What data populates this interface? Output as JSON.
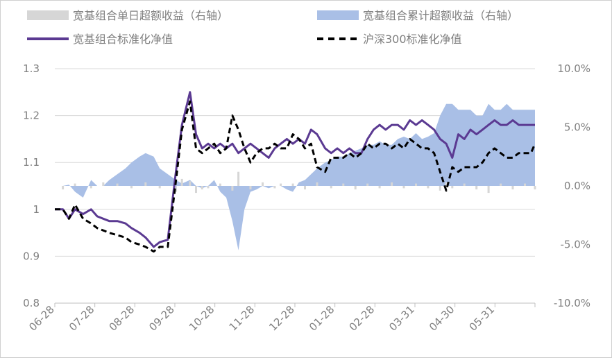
{
  "chart_data": {
    "type": "line",
    "legend": [
      {
        "label": "宽基组合单日超额收益（右轴）",
        "kind": "bar",
        "color": "#d6d6d6"
      },
      {
        "label": "宽基组合累计超额收益（右轴）",
        "kind": "area",
        "color": "#a9bfe6"
      },
      {
        "label": "宽基组合标准化净值",
        "kind": "line",
        "color": "#5b3a92"
      },
      {
        "label": "沪深300标准化净值",
        "kind": "dashed",
        "color": "#000000"
      }
    ],
    "legend_placement": "top",
    "x_ticks": [
      "06-28",
      "07-28",
      "08-28",
      "09-28",
      "10-28",
      "11-28",
      "12-28",
      "01-28",
      "02-28",
      "03-31",
      "04-30",
      "05-31"
    ],
    "x_range": [
      0,
      238
    ],
    "y_left": {
      "ticks": [
        "1.3",
        "1.2",
        "1.1",
        "1",
        "0.9",
        "0.8"
      ],
      "range": [
        0.8,
        1.3
      ]
    },
    "y_right": {
      "ticks": [
        "10.0%",
        "5.0%",
        "0.0%",
        "-5.0%",
        "-10.0%"
      ],
      "range": [
        -10,
        10
      ]
    },
    "grid": true,
    "series": [
      {
        "name": "宽基组合标准化净值",
        "style": "solid",
        "color": "#5b3a92",
        "x": [
          0,
          4,
          7,
          10,
          14,
          18,
          21,
          24,
          27,
          31,
          35,
          38,
          42,
          45,
          49,
          52,
          56,
          60,
          63,
          67,
          70,
          73,
          76,
          79,
          82,
          85,
          88,
          91,
          94,
          97,
          100,
          103,
          106,
          109,
          112,
          115,
          118,
          121,
          124,
          127,
          130,
          134,
          137,
          140,
          143,
          146,
          149,
          152,
          155,
          158,
          161,
          164,
          167,
          170,
          173,
          176,
          179,
          182,
          185,
          188,
          191,
          194,
          197,
          200,
          203,
          206,
          209,
          212,
          215,
          218,
          221,
          224,
          227,
          230,
          233,
          236,
          238
        ],
        "values": [
          1.0,
          1.0,
          0.98,
          1.0,
          0.99,
          1.0,
          0.985,
          0.98,
          0.975,
          0.975,
          0.97,
          0.96,
          0.95,
          0.94,
          0.92,
          0.93,
          0.935,
          1.08,
          1.18,
          1.25,
          1.16,
          1.13,
          1.14,
          1.13,
          1.14,
          1.13,
          1.14,
          1.12,
          1.13,
          1.14,
          1.13,
          1.12,
          1.11,
          1.13,
          1.14,
          1.15,
          1.14,
          1.15,
          1.14,
          1.17,
          1.16,
          1.13,
          1.12,
          1.13,
          1.12,
          1.13,
          1.12,
          1.12,
          1.15,
          1.17,
          1.18,
          1.17,
          1.18,
          1.18,
          1.17,
          1.19,
          1.18,
          1.19,
          1.18,
          1.17,
          1.15,
          1.14,
          1.11,
          1.16,
          1.15,
          1.17,
          1.16,
          1.17,
          1.18,
          1.19,
          1.18,
          1.18,
          1.19,
          1.18,
          1.18,
          1.18,
          1.18
        ]
      },
      {
        "name": "沪深300标准化净值",
        "style": "dashed",
        "color": "#000000",
        "x": [
          0,
          4,
          7,
          10,
          14,
          18,
          21,
          24,
          27,
          31,
          35,
          38,
          42,
          45,
          49,
          52,
          56,
          60,
          63,
          67,
          70,
          73,
          76,
          79,
          82,
          85,
          88,
          91,
          94,
          97,
          100,
          103,
          106,
          109,
          112,
          115,
          118,
          121,
          124,
          127,
          130,
          134,
          137,
          140,
          143,
          146,
          149,
          152,
          155,
          158,
          161,
          164,
          167,
          170,
          173,
          176,
          179,
          182,
          185,
          188,
          191,
          194,
          197,
          200,
          203,
          206,
          209,
          212,
          215,
          218,
          221,
          224,
          227,
          230,
          233,
          236,
          238
        ],
        "values": [
          1.0,
          1.0,
          0.98,
          1.01,
          0.98,
          0.97,
          0.96,
          0.955,
          0.95,
          0.945,
          0.94,
          0.93,
          0.925,
          0.92,
          0.91,
          0.92,
          0.92,
          1.06,
          1.17,
          1.23,
          1.13,
          1.12,
          1.13,
          1.14,
          1.12,
          1.13,
          1.2,
          1.17,
          1.13,
          1.1,
          1.12,
          1.13,
          1.13,
          1.14,
          1.13,
          1.13,
          1.16,
          1.15,
          1.13,
          1.14,
          1.09,
          1.08,
          1.11,
          1.11,
          1.11,
          1.12,
          1.11,
          1.12,
          1.14,
          1.13,
          1.14,
          1.14,
          1.13,
          1.14,
          1.13,
          1.15,
          1.14,
          1.13,
          1.13,
          1.12,
          1.08,
          1.04,
          1.09,
          1.08,
          1.09,
          1.09,
          1.09,
          1.1,
          1.12,
          1.13,
          1.12,
          1.11,
          1.11,
          1.12,
          1.12,
          1.12,
          1.14
        ]
      },
      {
        "name": "宽基组合累计超额收益（右轴）",
        "axis": "right",
        "type": "area",
        "color": "#a9bfe6",
        "x": [
          0,
          4,
          7,
          10,
          14,
          18,
          21,
          24,
          27,
          31,
          35,
          38,
          42,
          45,
          49,
          52,
          56,
          60,
          63,
          67,
          70,
          73,
          76,
          79,
          82,
          85,
          88,
          91,
          94,
          97,
          100,
          103,
          106,
          109,
          112,
          115,
          118,
          121,
          124,
          127,
          130,
          134,
          137,
          140,
          143,
          146,
          149,
          152,
          155,
          158,
          161,
          164,
          167,
          170,
          173,
          176,
          179,
          182,
          185,
          188,
          191,
          194,
          197,
          200,
          203,
          206,
          209,
          212,
          215,
          218,
          221,
          224,
          227,
          230,
          233,
          236,
          238
        ],
        "values": [
          0.0,
          0.0,
          0.1,
          -0.5,
          -1.0,
          0.5,
          0.0,
          0.0,
          0.5,
          1.0,
          1.5,
          2.0,
          2.5,
          2.8,
          2.5,
          1.5,
          1.0,
          0.5,
          0.2,
          0.5,
          0.0,
          -0.2,
          0.0,
          0.5,
          -0.5,
          -1.0,
          -3.0,
          -5.5,
          -2.0,
          -0.5,
          -0.3,
          0.0,
          -0.2,
          0.0,
          0.0,
          -0.3,
          -0.5,
          0.3,
          0.5,
          1.0,
          1.5,
          2.0,
          2.2,
          2.5,
          2.5,
          2.8,
          3.0,
          3.2,
          3.5,
          3.5,
          3.8,
          3.5,
          3.5,
          4.0,
          4.2,
          4.0,
          4.5,
          4.0,
          4.2,
          4.5,
          6.0,
          7.0,
          7.0,
          6.5,
          6.5,
          6.5,
          6.0,
          6.0,
          7.0,
          6.5,
          6.5,
          7.0,
          6.5,
          6.5,
          6.5,
          6.5,
          6.5
        ]
      },
      {
        "name": "宽基组合单日超额收益（右轴）",
        "axis": "right",
        "type": "bar",
        "color": "#d6d6d6",
        "x": [
          4,
          10,
          18,
          24,
          31,
          38,
          45,
          52,
          60,
          63,
          67,
          70,
          73,
          76,
          82,
          88,
          91,
          97,
          103,
          109,
          112,
          118,
          124,
          130,
          137,
          143,
          149,
          155,
          161,
          167,
          173,
          179,
          185,
          191,
          194,
          197,
          203,
          209,
          215,
          221,
          227,
          233,
          238
        ],
        "values": [
          -0.3,
          0.2,
          -0.2,
          0.3,
          0.2,
          -0.2,
          0.3,
          -0.2,
          -0.5,
          0.6,
          0.4,
          -0.6,
          -0.3,
          -0.2,
          0.2,
          -0.4,
          1.2,
          -0.3,
          0.3,
          -0.2,
          0.2,
          0.2,
          -0.3,
          0.3,
          -0.2,
          0.2,
          -0.3,
          0.2,
          -0.2,
          0.3,
          -0.2,
          0.2,
          -0.2,
          -0.4,
          0.3,
          -0.2,
          0.2,
          -0.3,
          -0.6,
          0.2,
          -0.3,
          0.2,
          -0.3
        ]
      }
    ]
  }
}
